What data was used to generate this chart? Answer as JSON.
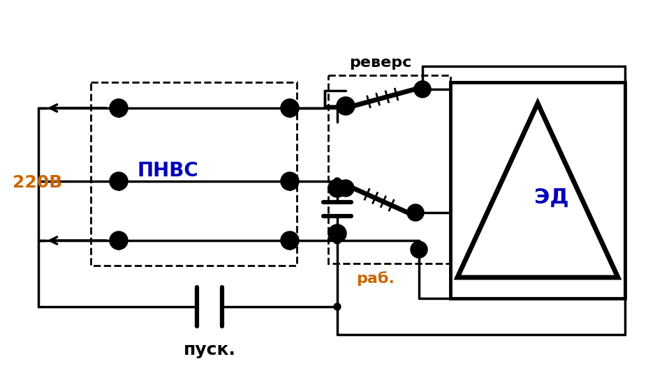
{
  "bg_color": "#ffffff",
  "lc": "#000000",
  "figsize": [
    9.38,
    5.48
  ],
  "dpi": 100,
  "label_220v": "220В",
  "label_pnvs": "ПНВС",
  "label_revers": "реверс",
  "label_rab": "раб.",
  "label_pusk": "пуск.",
  "label_ed": "ЭД",
  "color_orange": "#cc6600",
  "color_blue": "#0000bb"
}
